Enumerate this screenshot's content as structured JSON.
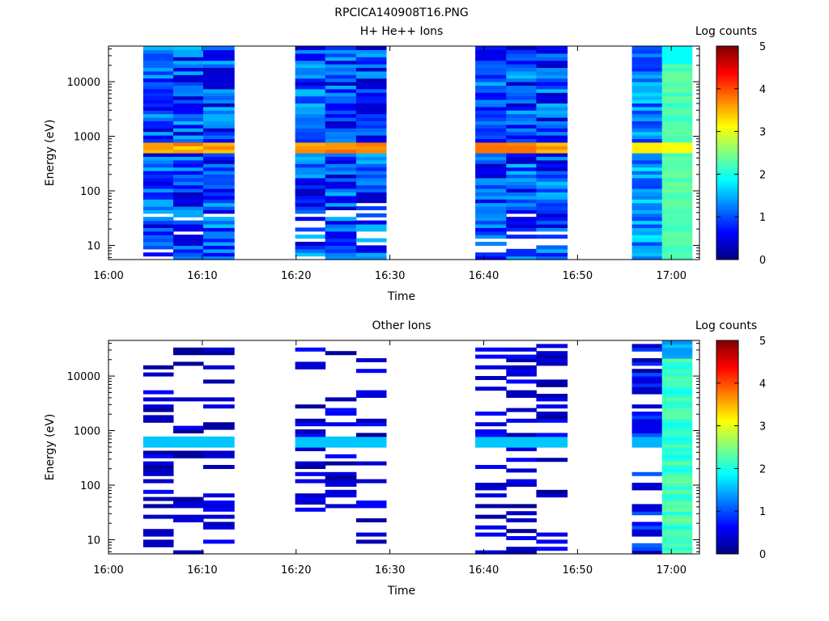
{
  "figure": {
    "title": "RPCICA140908T16.PNG"
  },
  "colormap": [
    "#000080",
    "#0000ff",
    "#0080ff",
    "#00ffff",
    "#80ff80",
    "#ffff00",
    "#ff8000",
    "#ff0000",
    "#800000"
  ],
  "chart_data": [
    {
      "type": "heatmap",
      "title": "H+ He++ Ions",
      "xlabel": "Time",
      "ylabel": "Energy (eV)",
      "colorbar_label": "Log counts",
      "x_ticks": [
        "16:00",
        "16:10",
        "16:20",
        "16:30",
        "16:40",
        "16:50",
        "17:00"
      ],
      "x_range_minutes": [
        0,
        63
      ],
      "y_scale": "log",
      "y_range": [
        5.5,
        45000
      ],
      "y_ticks": [
        "10",
        "100",
        "1000",
        "10000"
      ],
      "colorbar_range": [
        0,
        5
      ],
      "colorbar_ticks": [
        "0",
        "1",
        "2",
        "3",
        "4",
        "5"
      ],
      "columns": [
        {
          "t0": 3.7,
          "t1": 6.9,
          "profile": "hi_blue"
        },
        {
          "t0": 6.9,
          "t1": 10.1,
          "profile": "hi_blue"
        },
        {
          "t0": 10.1,
          "t1": 13.4,
          "profile": "hi_blue"
        },
        {
          "t0": 19.9,
          "t1": 23.1,
          "profile": "hi_blue"
        },
        {
          "t0": 23.1,
          "t1": 26.4,
          "profile": "hi_blue"
        },
        {
          "t0": 26.4,
          "t1": 29.6,
          "profile": "hi_blue"
        },
        {
          "t0": 39.1,
          "t1": 42.4,
          "profile": "hi_blue"
        },
        {
          "t0": 42.4,
          "t1": 45.6,
          "profile": "hi_blue"
        },
        {
          "t0": 45.6,
          "t1": 48.9,
          "profile": "hi_blue"
        },
        {
          "t0": 55.8,
          "t1": 59.0,
          "profile": "hi_mixed"
        },
        {
          "t0": 59.0,
          "t1": 62.2,
          "profile": "hi_green"
        }
      ]
    },
    {
      "type": "heatmap",
      "title": "Other Ions",
      "xlabel": "Time",
      "ylabel": "Energy (eV)",
      "colorbar_label": "Log counts",
      "x_ticks": [
        "16:00",
        "16:10",
        "16:20",
        "16:30",
        "16:40",
        "16:50",
        "17:00"
      ],
      "x_range_minutes": [
        0,
        63
      ],
      "y_scale": "log",
      "y_range": [
        5.5,
        45000
      ],
      "y_ticks": [
        "10",
        "100",
        "1000",
        "10000"
      ],
      "colorbar_range": [
        0,
        5
      ],
      "colorbar_ticks": [
        "0",
        "1",
        "2",
        "3",
        "4",
        "5"
      ],
      "columns": [
        {
          "t0": 3.7,
          "t1": 6.9,
          "profile": "sparse"
        },
        {
          "t0": 6.9,
          "t1": 10.1,
          "profile": "sparse"
        },
        {
          "t0": 10.1,
          "t1": 13.4,
          "profile": "sparse"
        },
        {
          "t0": 19.9,
          "t1": 23.1,
          "profile": "sparse"
        },
        {
          "t0": 23.1,
          "t1": 26.4,
          "profile": "sparse"
        },
        {
          "t0": 26.4,
          "t1": 29.6,
          "profile": "sparse"
        },
        {
          "t0": 39.1,
          "t1": 42.4,
          "profile": "sparse"
        },
        {
          "t0": 42.4,
          "t1": 45.6,
          "profile": "sparse"
        },
        {
          "t0": 45.6,
          "t1": 48.9,
          "profile": "sparse"
        },
        {
          "t0": 55.8,
          "t1": 59.0,
          "profile": "sparse_mixed"
        },
        {
          "t0": 59.0,
          "t1": 62.2,
          "profile": "sparse_green"
        }
      ]
    }
  ]
}
